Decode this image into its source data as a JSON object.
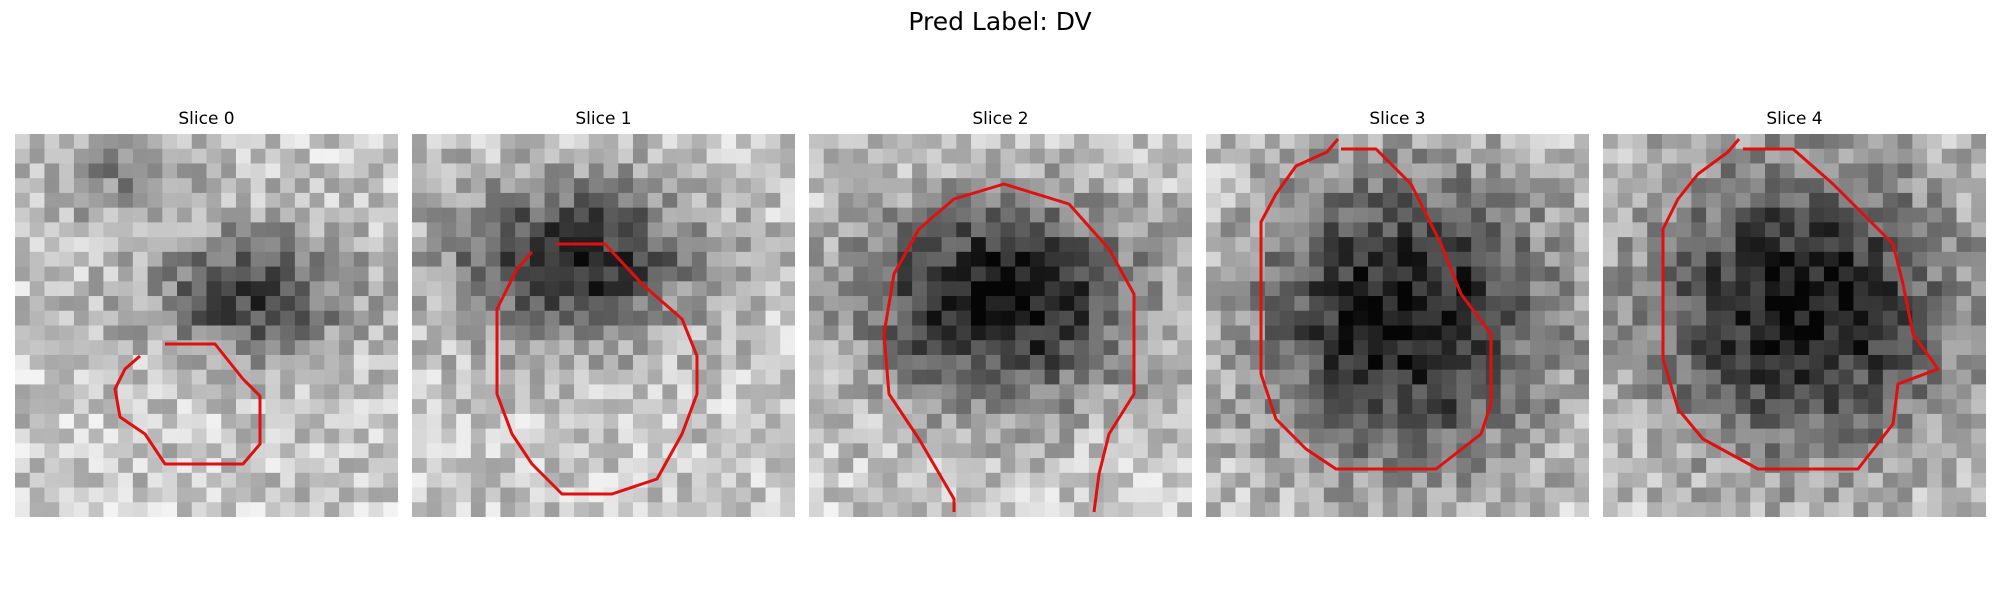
{
  "figure": {
    "title": "Pred Label: DV"
  },
  "slices": [
    {
      "title": "Slice 0"
    },
    {
      "title": "Slice 1"
    },
    {
      "title": "Slice 2"
    },
    {
      "title": "Slice 3"
    },
    {
      "title": "Slice 4"
    }
  ],
  "contour_color": "#e01010"
}
